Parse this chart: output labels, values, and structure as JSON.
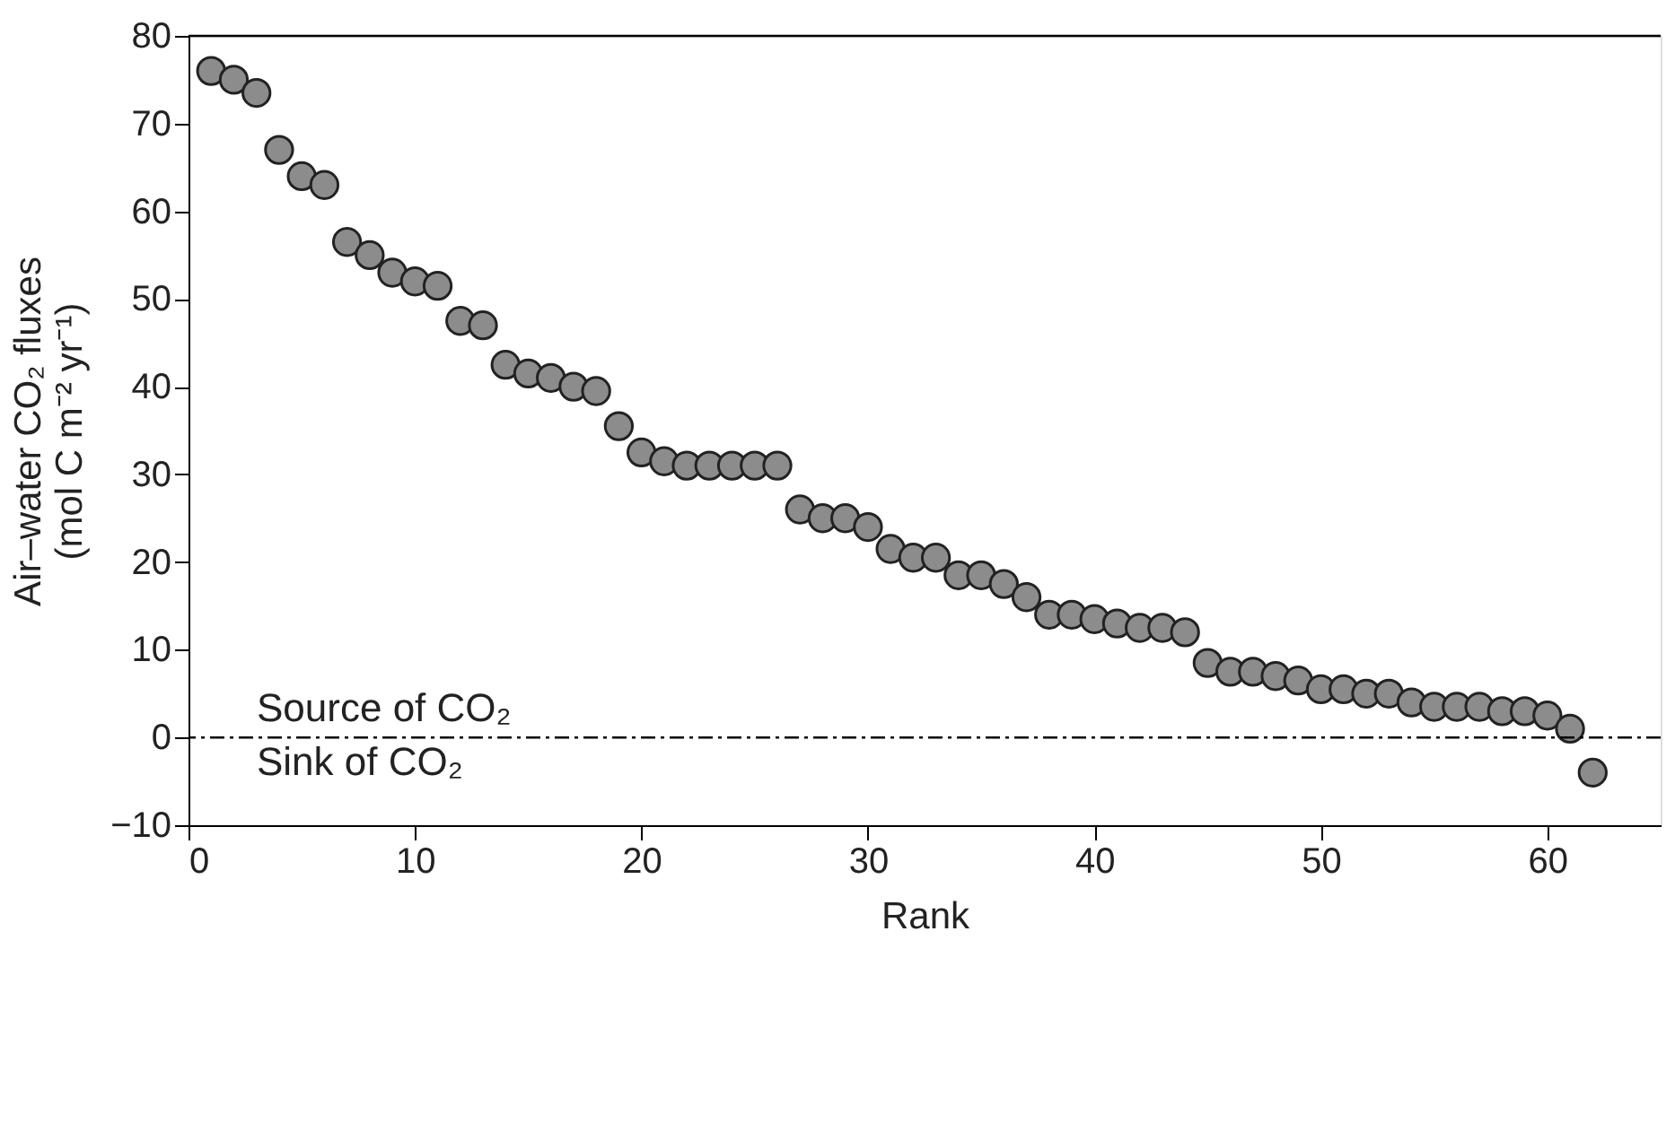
{
  "chart_data": {
    "type": "scatter",
    "xlabel": "Rank",
    "ylabel": "Air–water CO₂ fluxes\n(mol C m⁻² yr⁻¹)",
    "x": [
      1,
      2,
      3,
      4,
      5,
      6,
      7,
      8,
      9,
      10,
      11,
      12,
      13,
      14,
      15,
      16,
      17,
      18,
      19,
      20,
      21,
      22,
      23,
      24,
      25,
      26,
      27,
      28,
      29,
      30,
      31,
      32,
      33,
      34,
      35,
      36,
      37,
      38,
      39,
      40,
      41,
      42,
      43,
      44,
      45,
      46,
      47,
      48,
      49,
      50,
      51,
      52,
      53,
      54,
      55,
      56,
      57,
      58,
      59,
      60,
      61,
      62
    ],
    "series": [
      {
        "color": "#8c8c8c",
        "values": [
          76,
          75,
          73.5,
          67,
          64,
          63,
          56.5,
          55,
          53,
          52,
          51.5,
          47.5,
          47,
          42.5,
          41.5,
          41,
          40,
          39.5,
          35.5,
          32.5,
          31.5,
          31,
          31,
          31,
          31,
          31,
          26,
          25,
          25,
          24,
          21.5,
          20.5,
          20.5,
          18.5,
          18.5,
          17.5,
          16,
          14,
          14,
          13.5,
          13,
          12.5,
          12.5,
          12,
          8.5,
          7.5,
          7.5,
          7,
          6.5,
          5.5,
          5.5,
          5,
          5,
          4,
          3.5,
          3.5,
          3.5,
          3,
          3,
          2.5,
          1,
          -4
        ]
      }
    ],
    "xlim": [
      0,
      65
    ],
    "ylim": [
      -10,
      80
    ],
    "xticks": [
      0,
      10,
      20,
      30,
      40,
      50,
      60
    ],
    "yticks": [
      -10,
      0,
      10,
      20,
      30,
      40,
      50,
      60,
      70,
      80
    ],
    "marker": "circle",
    "grid": false,
    "ref_lines": [
      {
        "axis": "y",
        "value": 0,
        "line_style": "dashdot",
        "color": "#000000"
      }
    ],
    "annotations": [
      "Source of CO₂",
      "Sink of CO₂"
    ]
  }
}
